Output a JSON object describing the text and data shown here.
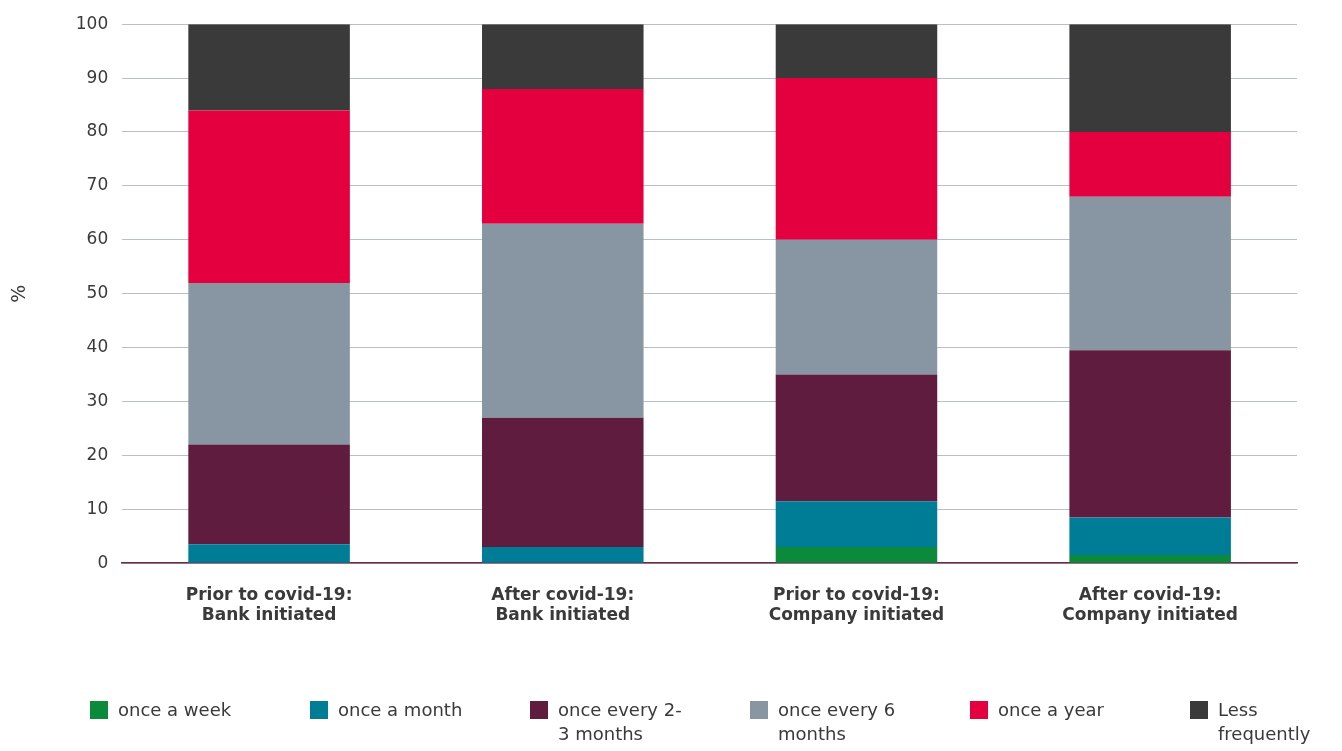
{
  "chart_data": {
    "type": "bar",
    "stacked": true,
    "ylabel": "%",
    "categories": [
      "Prior to covid-19: Bank initiated",
      "After covid-19: Bank initiated",
      "Prior to covid-19: Company initiated",
      "After covid-19: Company initiated"
    ],
    "series": [
      {
        "name": "once a week",
        "color": "#0b8a3c",
        "values": [
          0,
          0,
          3,
          1.5
        ]
      },
      {
        "name": "once a month",
        "color": "#007d96",
        "values": [
          3.5,
          3,
          8.5,
          7
        ]
      },
      {
        "name": "once every 2-3 months",
        "color": "#5f1c3f",
        "values": [
          18.5,
          24,
          23.5,
          31
        ]
      },
      {
        "name": "once every 6 months",
        "color": "#8896a3",
        "values": [
          30,
          36,
          25,
          28.5
        ]
      },
      {
        "name": "once a year",
        "color": "#e4003f",
        "values": [
          32,
          25,
          30,
          12
        ]
      },
      {
        "name": "Less frequently",
        "color": "#3a3a3a",
        "values": [
          16,
          12,
          10,
          20
        ]
      }
    ],
    "ylim": [
      0,
      100
    ],
    "yticks": [
      0,
      10,
      20,
      30,
      40,
      50,
      60,
      70,
      80,
      90,
      100
    ],
    "grid": "y",
    "legend": "bottom"
  }
}
